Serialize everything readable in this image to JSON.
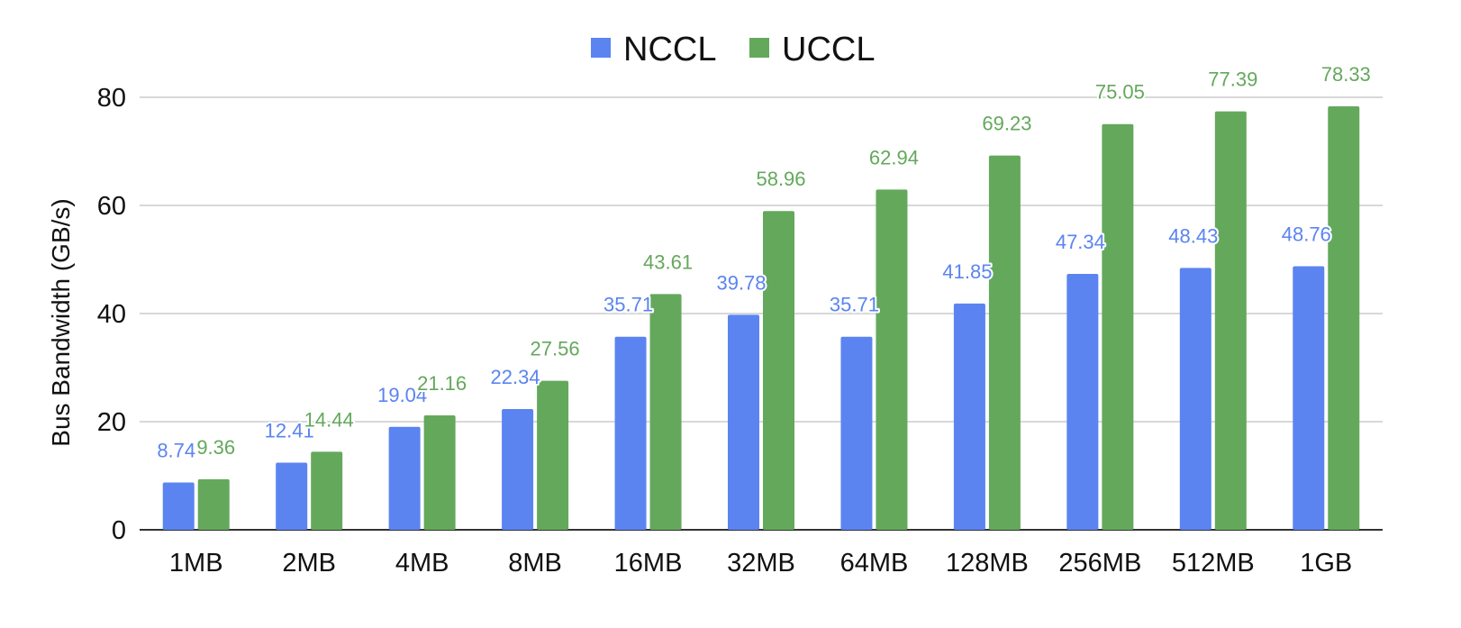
{
  "chart_data": {
    "type": "bar",
    "categories": [
      "1MB",
      "2MB",
      "4MB",
      "8MB",
      "16MB",
      "32MB",
      "64MB",
      "128MB",
      "256MB",
      "512MB",
      "1GB"
    ],
    "series": [
      {
        "name": "NCCL",
        "color": "#5b84f1",
        "values": [
          8.74,
          12.41,
          19.04,
          22.34,
          35.71,
          39.78,
          35.71,
          41.85,
          47.34,
          48.43,
          48.76
        ],
        "labels": [
          "8.74",
          "12.41",
          "19.04",
          "22.34",
          "35.71",
          "39.78",
          "35.71",
          "41.85",
          "47.34",
          "48.43",
          "48.76"
        ]
      },
      {
        "name": "UCCL",
        "color": "#64a85c",
        "values": [
          9.36,
          14.44,
          21.16,
          27.56,
          43.61,
          58.96,
          62.94,
          69.23,
          75.05,
          77.39,
          78.33
        ],
        "labels": [
          "9.36",
          "14.44",
          "21.16",
          "27.56",
          "43.61",
          "58.96",
          "62.94",
          "69.23",
          "75.05",
          "77.39",
          "78.33"
        ]
      }
    ],
    "title": "",
    "xlabel": "",
    "ylabel": "Bus Bandwidth (GB/s)",
    "ylim": [
      0,
      80
    ],
    "yticks": [
      "0",
      "20",
      "40",
      "60",
      "80"
    ],
    "ytick_values": [
      0,
      20,
      40,
      60,
      80
    ],
    "grid": true,
    "legend_position": "top-center",
    "colors": {
      "grid": "#cccccc",
      "axis": "#333333",
      "text": "#111111"
    }
  }
}
